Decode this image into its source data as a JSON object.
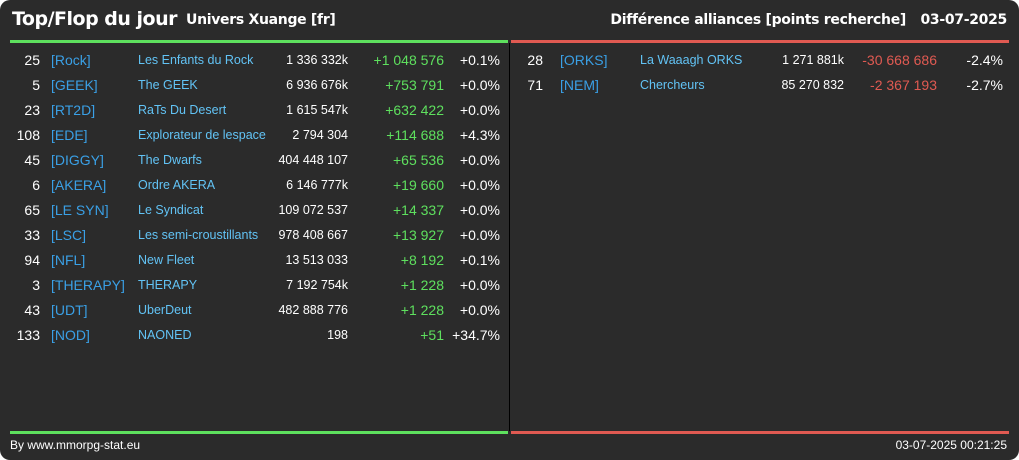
{
  "header": {
    "title": "Top/Flop du jour",
    "universe": "Univers Xuange [fr]",
    "subtitle": "Différence alliances [points recherche]",
    "date": "03-07-2025"
  },
  "colors": {
    "background": "#2b2b2b",
    "top_bar": "#5ee05e",
    "flop_bar": "#e05a52",
    "tag": "#3aa0e6",
    "name": "#62c3f5",
    "positive": "#5ee05e",
    "negative": "#e05a52"
  },
  "top": [
    {
      "rank": "25",
      "tag": "[Rock]",
      "name": "Les Enfants du Rock",
      "score": "1 336 332k",
      "diff": "+1 048 576",
      "pct": "+0.1%"
    },
    {
      "rank": "5",
      "tag": "[GEEK]",
      "name": "The GEEK",
      "score": "6 936 676k",
      "diff": "+753 791",
      "pct": "+0.0%"
    },
    {
      "rank": "23",
      "tag": "[RT2D]",
      "name": "RaTs Du Desert",
      "score": "1 615 547k",
      "diff": "+632 422",
      "pct": "+0.0%"
    },
    {
      "rank": "108",
      "tag": "[EDE]",
      "name": "Explorateur de lespace",
      "score": "2 794 304",
      "diff": "+114 688",
      "pct": "+4.3%"
    },
    {
      "rank": "45",
      "tag": "[DIGGY]",
      "name": "The Dwarfs",
      "score": "404 448 107",
      "diff": "+65 536",
      "pct": "+0.0%"
    },
    {
      "rank": "6",
      "tag": "[AKERA]",
      "name": "Ordre AKERA",
      "score": "6 146 777k",
      "diff": "+19 660",
      "pct": "+0.0%"
    },
    {
      "rank": "65",
      "tag": "[LE SYN]",
      "name": "Le Syndicat",
      "score": "109 072 537",
      "diff": "+14 337",
      "pct": "+0.0%"
    },
    {
      "rank": "33",
      "tag": "[LSC]",
      "name": "Les semi-croustillants",
      "score": "978 408 667",
      "diff": "+13 927",
      "pct": "+0.0%"
    },
    {
      "rank": "94",
      "tag": "[NFL]",
      "name": "New Fleet",
      "score": "13 513 033",
      "diff": "+8 192",
      "pct": "+0.1%"
    },
    {
      "rank": "3",
      "tag": "[THERAPY]",
      "name": "THERAPY",
      "score": "7 192 754k",
      "diff": "+1 228",
      "pct": "+0.0%"
    },
    {
      "rank": "43",
      "tag": "[UDT]",
      "name": "UberDeut",
      "score": "482 888 776",
      "diff": "+1 228",
      "pct": "+0.0%"
    },
    {
      "rank": "133",
      "tag": "[NOD]",
      "name": "NAONED",
      "score": "198",
      "diff": "+51",
      "pct": "+34.7%"
    }
  ],
  "flop": [
    {
      "rank": "28",
      "tag": "[ORKS]",
      "name": "La Waaagh ORKS",
      "score": "1 271 881k",
      "diff": "-30 668 686",
      "pct": "-2.4%"
    },
    {
      "rank": "71",
      "tag": "[NEM]",
      "name": "Chercheurs",
      "score": "85 270 832",
      "diff": "-2 367 193",
      "pct": "-2.7%"
    }
  ],
  "footer": {
    "source": "By www.mmorpg-stat.eu",
    "timestamp": "03-07-2025 00:21:25"
  }
}
